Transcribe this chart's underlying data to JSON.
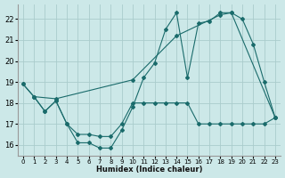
{
  "xlabel": "Humidex (Indice chaleur)",
  "bg_color": "#cce8e8",
  "grid_color": "#aacccc",
  "line_color": "#1a6b6b",
  "xlim": [
    -0.5,
    23.5
  ],
  "ylim": [
    15.5,
    22.7
  ],
  "x_ticks": [
    0,
    1,
    2,
    3,
    4,
    5,
    6,
    7,
    8,
    9,
    10,
    11,
    12,
    13,
    14,
    15,
    16,
    17,
    18,
    19,
    20,
    21,
    22,
    23
  ],
  "yticks": [
    16,
    17,
    18,
    19,
    20,
    21,
    22
  ],
  "s1_x": [
    0,
    1,
    2,
    3,
    4,
    5,
    6,
    7,
    8,
    9,
    10,
    11,
    12,
    13,
    14,
    15,
    16,
    17,
    18,
    19,
    20,
    21,
    22,
    23
  ],
  "s1_y": [
    18.9,
    18.3,
    17.6,
    18.1,
    17.0,
    16.1,
    16.1,
    15.85,
    15.85,
    16.7,
    17.8,
    19.2,
    19.9,
    21.5,
    22.3,
    19.2,
    21.8,
    21.9,
    22.3,
    22.3,
    22.0,
    20.8,
    19.0,
    17.3
  ],
  "s2_x": [
    0,
    1,
    2,
    3,
    4,
    5,
    6,
    7,
    8,
    9,
    10,
    11,
    12,
    13,
    14,
    15,
    16,
    17,
    18,
    19,
    20,
    21,
    22,
    23
  ],
  "s2_y": [
    18.9,
    18.3,
    17.6,
    18.1,
    17.0,
    16.5,
    16.5,
    16.4,
    16.4,
    17.0,
    18.0,
    18.0,
    18.0,
    18.0,
    18.0,
    18.0,
    17.0,
    17.0,
    17.0,
    17.0,
    17.0,
    17.0,
    17.0,
    17.3
  ],
  "s3_x": [
    1,
    3,
    10,
    14,
    18,
    19,
    23
  ],
  "s3_y": [
    18.3,
    18.2,
    19.1,
    21.2,
    22.2,
    22.3,
    17.3
  ]
}
